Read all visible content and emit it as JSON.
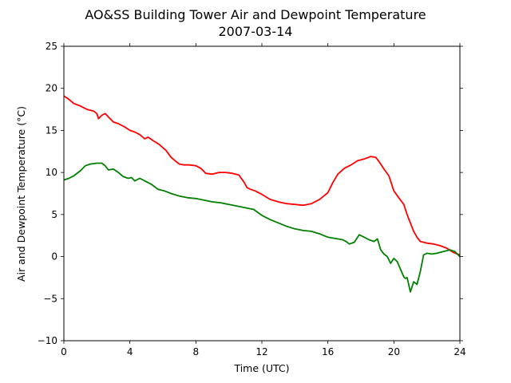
{
  "chart_data": {
    "type": "line",
    "title": "AO&SS Building Tower Air and Dewpoint Temperature",
    "subtitle": "2007-03-14",
    "xlabel": "Time (UTC)",
    "ylabel": "Air and Dewpoint Temperature (°C)",
    "xlim": [
      0,
      24
    ],
    "ylim": [
      -10,
      25
    ],
    "xticks": [
      0,
      4,
      8,
      12,
      16,
      20,
      24
    ],
    "yticks": [
      -10,
      -5,
      0,
      5,
      10,
      15,
      20,
      25
    ],
    "grid": false,
    "legend": "none",
    "series": [
      {
        "color": "#ff0000",
        "x": [
          0,
          0.3,
          0.6,
          1.0,
          1.4,
          1.8,
          2.0,
          2.1,
          2.3,
          2.5,
          2.7,
          3.0,
          3.3,
          3.7,
          4.0,
          4.3,
          4.6,
          4.9,
          5.1,
          5.4,
          5.8,
          6.2,
          6.5,
          6.8,
          7.0,
          7.3,
          7.6,
          8.0,
          8.3,
          8.6,
          9.0,
          9.4,
          9.8,
          10.2,
          10.6,
          10.9,
          11.1,
          11.3,
          11.6,
          12.0,
          12.5,
          13.0,
          13.5,
          14.0,
          14.5,
          15.0,
          15.5,
          16.0,
          16.3,
          16.6,
          17.0,
          17.4,
          17.8,
          18.2,
          18.6,
          18.9,
          19.1,
          19.4,
          19.7,
          20.0,
          20.3,
          20.6,
          20.8,
          21.0,
          21.2,
          21.4,
          21.6,
          21.8,
          22.0,
          22.4,
          22.8,
          23.2,
          23.6,
          24.0
        ],
        "values": [
          19.1,
          18.7,
          18.2,
          17.9,
          17.5,
          17.3,
          17.0,
          16.4,
          16.8,
          17.0,
          16.6,
          16.0,
          15.8,
          15.4,
          15.0,
          14.8,
          14.5,
          14.0,
          14.2,
          13.8,
          13.3,
          12.6,
          11.8,
          11.3,
          11.0,
          10.9,
          10.9,
          10.8,
          10.5,
          9.9,
          9.8,
          10.0,
          10.0,
          9.9,
          9.7,
          8.9,
          8.2,
          8.0,
          7.8,
          7.4,
          6.8,
          6.5,
          6.3,
          6.2,
          6.1,
          6.3,
          6.8,
          7.6,
          8.8,
          9.8,
          10.5,
          10.9,
          11.4,
          11.6,
          11.9,
          11.8,
          11.3,
          10.4,
          9.6,
          7.8,
          7.0,
          6.2,
          5.0,
          4.0,
          3.0,
          2.3,
          1.8,
          1.7,
          1.6,
          1.5,
          1.3,
          1.0,
          0.5,
          0.2
        ]
      },
      {
        "color": "#008000",
        "x": [
          0,
          0.3,
          0.6,
          1.0,
          1.3,
          1.6,
          2.0,
          2.3,
          2.5,
          2.7,
          3.0,
          3.3,
          3.6,
          3.9,
          4.1,
          4.3,
          4.6,
          4.9,
          5.3,
          5.7,
          6.1,
          6.5,
          7.0,
          7.5,
          8.0,
          8.5,
          9.0,
          9.5,
          10.0,
          10.5,
          11.0,
          11.5,
          12.0,
          12.5,
          13.0,
          13.5,
          14.0,
          14.5,
          15.0,
          15.5,
          16.0,
          16.3,
          16.6,
          16.9,
          17.1,
          17.3,
          17.6,
          17.9,
          18.2,
          18.5,
          18.8,
          19.0,
          19.2,
          19.4,
          19.6,
          19.8,
          20.0,
          20.2,
          20.4,
          20.6,
          20.7,
          20.8,
          21.0,
          21.2,
          21.4,
          21.6,
          21.8,
          22.0,
          22.3,
          22.6,
          23.0,
          23.4,
          23.7,
          24.0
        ],
        "values": [
          9.1,
          9.3,
          9.6,
          10.2,
          10.8,
          11.0,
          11.1,
          11.1,
          10.8,
          10.3,
          10.4,
          10.0,
          9.5,
          9.3,
          9.4,
          9.0,
          9.3,
          9.0,
          8.6,
          8.0,
          7.8,
          7.5,
          7.2,
          7.0,
          6.9,
          6.7,
          6.5,
          6.4,
          6.2,
          6.0,
          5.8,
          5.6,
          4.9,
          4.4,
          4.0,
          3.6,
          3.3,
          3.1,
          3.0,
          2.7,
          2.3,
          2.2,
          2.1,
          2.0,
          1.8,
          1.5,
          1.7,
          2.6,
          2.3,
          2.0,
          1.8,
          2.1,
          0.8,
          0.3,
          0.0,
          -0.8,
          -0.2,
          -0.6,
          -1.5,
          -2.4,
          -2.6,
          -2.5,
          -4.2,
          -3.0,
          -3.3,
          -1.8,
          0.2,
          0.4,
          0.3,
          0.4,
          0.6,
          0.8,
          0.6,
          0.0
        ]
      }
    ]
  }
}
